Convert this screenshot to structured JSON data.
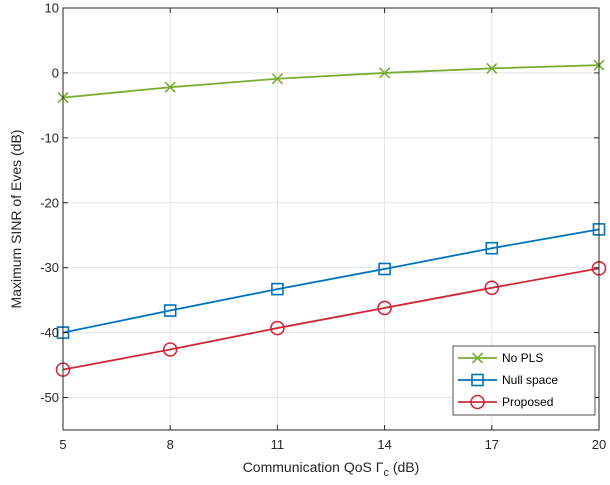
{
  "chart_data": {
    "type": "line",
    "xlabel": "Communication QoS Γc (dB)",
    "xlabel_main": "Communication QoS Γ",
    "xlabel_sub": "c",
    "xlabel_tail": " (dB)",
    "ylabel": "Maximum SINR of Eves (dB)",
    "x": [
      5,
      8,
      11,
      14,
      17,
      20
    ],
    "xlim": [
      5,
      20
    ],
    "ylim": [
      -55,
      10
    ],
    "xticks": [
      5,
      8,
      11,
      14,
      17,
      20
    ],
    "yticks": [
      10,
      0,
      -10,
      -20,
      -30,
      -40,
      -50
    ],
    "grid": true,
    "legend_position": "bottom-right",
    "series": [
      {
        "name": "No PLS",
        "marker": "x",
        "color": "#77AC30",
        "values": [
          -3.8,
          -2.2,
          -0.9,
          0.0,
          0.7,
          1.2
        ]
      },
      {
        "name": "Null space",
        "marker": "square",
        "color": "#0072BD",
        "values": [
          -40.0,
          -36.6,
          -33.3,
          -30.2,
          -27.0,
          -24.1
        ]
      },
      {
        "name": "Proposed",
        "marker": "circle",
        "color": "#D0283B",
        "values": [
          -45.7,
          -42.6,
          -39.3,
          -36.2,
          -33.1,
          -30.1
        ]
      }
    ]
  }
}
